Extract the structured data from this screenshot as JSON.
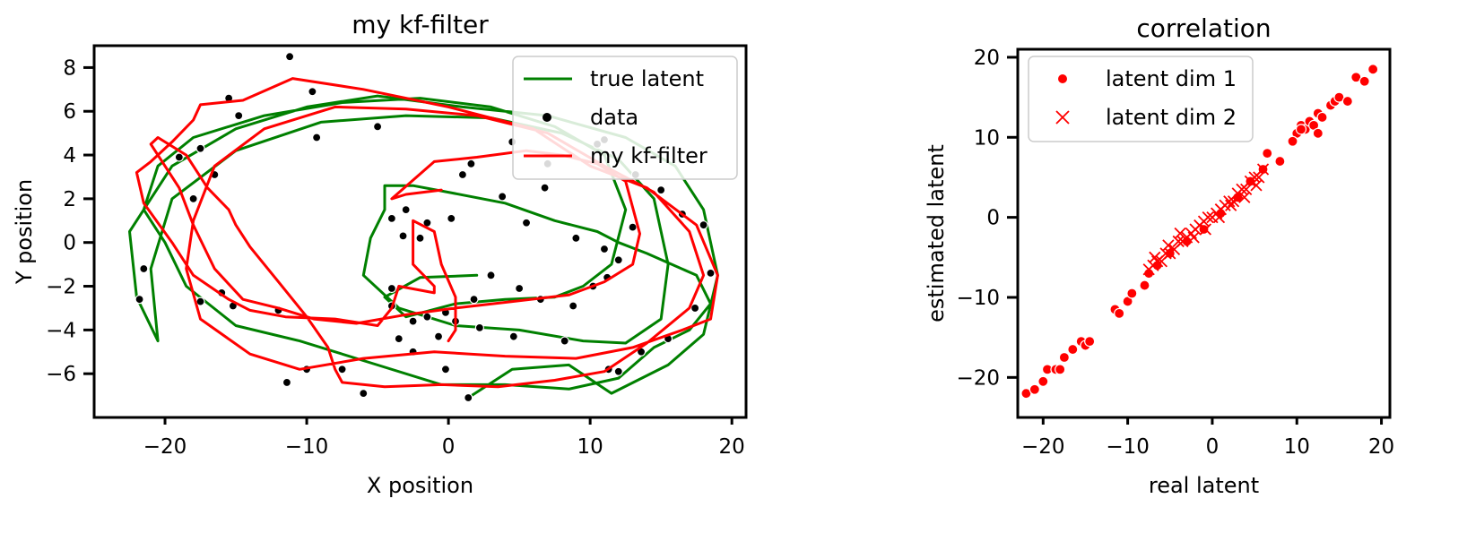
{
  "chart_data": [
    {
      "type": "line",
      "title": "my kf-filter",
      "xlabel": "X position",
      "ylabel": "Y position",
      "xlim": [
        -25,
        21
      ],
      "ylim": [
        -8,
        9
      ],
      "xticks": [
        -20,
        -10,
        0,
        10,
        20
      ],
      "yticks": [
        -6,
        -4,
        -2,
        0,
        2,
        4,
        6,
        8
      ],
      "legend_position": "upper-right",
      "legend": [
        "true latent",
        "data",
        "my kf-filter"
      ],
      "series": [
        {
          "name": "true latent",
          "color": "#008000",
          "kind": "line",
          "x": [
            1.4,
            4.5,
            8.5,
            11.5,
            15.5,
            18.0,
            19.0,
            18.0,
            16.0,
            12.5,
            7.0,
            1.0,
            -5.0,
            -10.0,
            -15.0,
            -19.5,
            -22.5,
            -22.0,
            -20.5,
            -21.0,
            -19.5,
            -15.0,
            -9.0,
            -3.0,
            3.0,
            8.0,
            12.0,
            14.5,
            15.5,
            15.0,
            12.5,
            9.5,
            5.0,
            0.5,
            -3.5,
            -6.0,
            -5.5,
            -4.5,
            -4.5,
            -2.5,
            0.0,
            4.0,
            7.5,
            10.5,
            12.0,
            14.0,
            17.5,
            18.5,
            17.0,
            14.5,
            12.0,
            8.5,
            4.0,
            -0.5,
            -5.5,
            -10.5,
            -15.0,
            -18.5,
            -20.0,
            -21.5,
            -20.5,
            -18.0,
            -13.0,
            -7.5,
            -2.0,
            3.0,
            7.5,
            11.0,
            12.5,
            11.5,
            9.5,
            7.5,
            4.0,
            0.5,
            -3.0,
            -4.5,
            -2.0,
            2.0
          ],
          "y": [
            -7.1,
            -5.8,
            -5.6,
            -6.9,
            -5.6,
            -4.2,
            -1.5,
            1.5,
            3.5,
            4.8,
            5.8,
            6.2,
            6.7,
            6.2,
            5.2,
            3.5,
            0.5,
            -2.5,
            -4.5,
            -1.2,
            2.0,
            4.2,
            5.5,
            5.8,
            5.7,
            5.0,
            3.8,
            2.0,
            -1.0,
            -3.5,
            -4.6,
            -4.5,
            -4.0,
            -3.8,
            -3.0,
            -1.5,
            0.2,
            1.5,
            2.6,
            2.6,
            2.3,
            1.8,
            1.0,
            0.5,
            0.0,
            -0.5,
            -1.5,
            -2.8,
            -4.0,
            -4.8,
            -6.2,
            -6.7,
            -6.5,
            -6.5,
            -5.5,
            -4.5,
            -3.8,
            -2.0,
            0.0,
            1.5,
            3.5,
            4.8,
            5.8,
            6.4,
            6.6,
            6.2,
            5.3,
            4.0,
            1.5,
            -1.0,
            -2.0,
            -2.5,
            -2.6,
            -2.8,
            -3.4,
            -2.5,
            -1.6,
            -1.5
          ]
        },
        {
          "name": "data",
          "color": "#000000",
          "kind": "scatter",
          "x": [
            -11.2,
            -9.6,
            -9.3,
            -5.0,
            -4.0,
            -3.0,
            0.2,
            1.6,
            4.5,
            7.0,
            10.5,
            11.0,
            13.2,
            15.0,
            16.5,
            18.0,
            18.5,
            -19.0,
            -17.5,
            -18.0,
            -16.5,
            -15.5,
            -14.8,
            -16.0,
            -21.5,
            -21.8,
            -17.5,
            -15.2,
            -12.0,
            -10.0,
            -7.5,
            -6.0,
            -11.4,
            -0.2,
            1.4,
            4.6,
            8.2,
            11.3,
            12.0,
            13.6,
            15.5,
            17.4,
            -4.0,
            -3.5,
            -2.5,
            -1.5,
            -0.7,
            0.5,
            1.8,
            3.0,
            5.0,
            6.5,
            8.8,
            10.2,
            11.2,
            12.0,
            13.0,
            -3.2,
            -2.0,
            -4.0,
            -2.5,
            -0.2,
            2.2,
            1.0,
            5.5,
            9.0,
            11.0,
            6.8,
            3.8,
            -1.5
          ],
          "y": [
            8.5,
            6.9,
            4.8,
            5.3,
            1.1,
            1.5,
            1.1,
            3.6,
            4.6,
            3.6,
            4.5,
            4.7,
            3.1,
            2.4,
            1.3,
            0.8,
            -1.4,
            3.9,
            4.3,
            2.0,
            3.1,
            6.6,
            5.8,
            -2.3,
            -1.2,
            -2.6,
            -2.7,
            -2.9,
            -3.1,
            -5.8,
            -5.8,
            -6.9,
            -6.4,
            -5.8,
            -7.1,
            -4.3,
            -4.5,
            -5.8,
            -5.9,
            -5.0,
            -4.4,
            -3.0,
            -2.9,
            -4.4,
            -3.6,
            -3.4,
            -4.3,
            -3.6,
            -2.6,
            -1.5,
            -2.1,
            -2.6,
            -2.9,
            -2.0,
            -1.6,
            -0.8,
            0.7,
            0.3,
            0.2,
            -2.1,
            -5.0,
            -3.2,
            -3.9,
            3.1,
            0.9,
            0.2,
            -0.3,
            2.5,
            2.1,
            0.9
          ]
        },
        {
          "name": "my kf-filter",
          "color": "#ff0000",
          "kind": "line",
          "x": [
            0.0,
            0.5,
            0.5,
            -0.5,
            -1.0,
            -2.5,
            -2.5,
            -1.0,
            -1.0,
            -3.5,
            -4.0,
            -5.0,
            -8.0,
            -11.5,
            -14.0,
            -15.5,
            -18.0,
            -19.5,
            -21.5,
            -22.0,
            -21.0,
            -19.5,
            -18.0,
            -17.5,
            -14.5,
            -11.0,
            -6.0,
            0.0,
            6.0,
            10.0,
            14.0,
            17.5,
            19.0,
            18.5,
            16.5,
            13.0,
            9.0,
            4.0,
            -1.0,
            -6.0,
            -10.5,
            -14.0,
            -17.5,
            -18.5,
            -18.0,
            -16.5,
            -13.0,
            -8.0,
            -3.0,
            2.0,
            7.0,
            11.0,
            14.5,
            17.0,
            18.0,
            17.0,
            14.0,
            11.0,
            7.5,
            3.5,
            -0.5,
            -4.5,
            -7.5,
            -8.0,
            -8.5,
            -10.0,
            -12.0,
            -14.0,
            -15.0,
            -15.5,
            -17.0,
            -18.5,
            -20.5,
            -21.0,
            -19.0,
            -18.0,
            -16.5,
            -14.5,
            -12.0,
            -9.5,
            -6.5,
            -3.0,
            0.5,
            4.5,
            8.5,
            11.0,
            13.0,
            13.5,
            13.0,
            12.5,
            10.5,
            8.0,
            5.5,
            2.0,
            -1.0,
            -4.0,
            -3.0,
            -0.5
          ],
          "y": [
            -4.5,
            -4.0,
            -2.5,
            -1.0,
            0.5,
            1.0,
            -1.0,
            -2.0,
            -2.3,
            -2.0,
            -3.0,
            -3.8,
            -3.5,
            -3.4,
            -3.1,
            -2.6,
            -1.5,
            0.0,
            1.8,
            3.2,
            3.7,
            4.6,
            5.6,
            6.3,
            6.5,
            7.5,
            7.0,
            6.2,
            5.2,
            3.5,
            2.5,
            0.8,
            -1.5,
            -3.5,
            -4.0,
            -4.8,
            -5.3,
            -5.2,
            -5.0,
            -5.3,
            -5.8,
            -5.1,
            -3.5,
            -1.2,
            1.0,
            3.5,
            5.2,
            6.2,
            6.1,
            5.8,
            5.0,
            3.5,
            2.3,
            0.5,
            -1.5,
            -3.0,
            -4.6,
            -5.9,
            -6.3,
            -6.6,
            -6.5,
            -6.6,
            -6.4,
            -5.8,
            -4.8,
            -3.4,
            -1.8,
            -0.2,
            0.8,
            1.5,
            2.5,
            4.0,
            4.8,
            4.5,
            2.5,
            0.8,
            -1.2,
            -2.6,
            -3.0,
            -3.5,
            -3.7,
            -3.3,
            -3.0,
            -2.7,
            -2.4,
            -1.8,
            -1.0,
            0.4,
            1.6,
            2.8,
            3.6,
            4.0,
            4.2,
            3.9,
            3.7,
            2.0,
            2.2,
            2.4
          ]
        }
      ]
    },
    {
      "type": "scatter",
      "title": "correlation",
      "xlabel": "real latent",
      "ylabel": "estimated latent",
      "xlim": [
        -23,
        21
      ],
      "ylim": [
        -25,
        21
      ],
      "xticks": [
        -20,
        -10,
        0,
        10,
        20
      ],
      "yticks": [
        -20,
        -10,
        0,
        10,
        20
      ],
      "legend_position": "upper-left",
      "legend": [
        "latent dim 1",
        "latent dim 2"
      ],
      "series": [
        {
          "name": "latent dim 1",
          "color": "#ff0000",
          "marker": "circle",
          "x": [
            -22.0,
            -21.0,
            -19.5,
            -18.5,
            -17.5,
            -16.5,
            -15.5,
            -15.0,
            -14.5,
            -20.0,
            -18.0,
            -11.5,
            -11.0,
            -10.0,
            -9.5,
            -8.0,
            -7.5,
            -6.5,
            -5.0,
            -3.0,
            -1.0,
            1.0,
            3.0,
            4.5,
            6.0,
            6.5,
            8.0,
            9.5,
            10.0,
            10.5,
            11.0,
            11.5,
            12.0,
            12.5,
            13.0,
            14.0,
            14.5,
            15.0,
            16.0,
            17.0,
            18.0,
            19.0,
            9.5,
            12.5,
            10.5
          ],
          "y": [
            -22.0,
            -21.5,
            -19.0,
            -19.0,
            -17.5,
            -16.5,
            -15.5,
            -16.0,
            -15.5,
            -20.5,
            -19.0,
            -11.5,
            -12.0,
            -10.5,
            -9.5,
            -8.5,
            -7.0,
            -6.0,
            -4.5,
            -3.0,
            -1.5,
            0.5,
            2.5,
            4.5,
            6.0,
            8.0,
            7.0,
            9.5,
            10.5,
            11.5,
            11.0,
            12.0,
            11.5,
            13.0,
            12.5,
            14.0,
            14.5,
            15.0,
            14.5,
            17.5,
            17.0,
            18.5,
            9.5,
            10.5,
            11.0
          ]
        },
        {
          "name": "latent dim 2",
          "color": "#ff0000",
          "marker": "x",
          "x": [
            -7.5,
            -7.0,
            -6.5,
            -6.0,
            -5.5,
            -5.0,
            -4.5,
            -4.0,
            -3.5,
            -3.0,
            -2.5,
            -2.0,
            -1.5,
            -1.0,
            -0.5,
            0.0,
            0.5,
            1.0,
            1.5,
            2.0,
            2.5,
            3.0,
            3.5,
            4.0,
            4.5,
            5.0,
            5.5,
            6.0,
            -6.8,
            -5.2,
            -3.8,
            -2.2,
            -0.8,
            0.8,
            2.2,
            3.8,
            5.2
          ],
          "y": [
            -6.5,
            -6.0,
            -5.5,
            -5.5,
            -4.5,
            -4.5,
            -4.0,
            -3.0,
            -3.0,
            -2.5,
            -2.0,
            -1.5,
            -1.0,
            -0.5,
            0.0,
            0.0,
            0.5,
            1.0,
            1.5,
            2.0,
            2.0,
            3.0,
            3.5,
            3.5,
            4.5,
            5.0,
            5.0,
            6.0,
            -5.0,
            -3.5,
            -2.0,
            -2.5,
            -1.5,
            0.0,
            1.5,
            2.5,
            4.0
          ]
        }
      ]
    }
  ]
}
